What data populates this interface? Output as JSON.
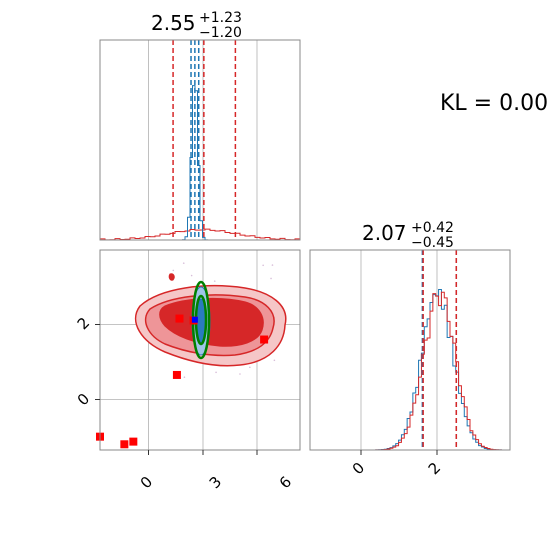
{
  "chart_data": {
    "type": "corner",
    "panels": [
      {
        "panel": "marginal-param-1",
        "title": {
          "value": "2.55",
          "upper": "+1.23",
          "lower": "−1.20"
        },
        "xlim": [
          -1.5,
          6.3
        ],
        "grid": true,
        "series": [
          {
            "color": "#1f77b4",
            "style": "step-histogram",
            "peak_x": 2.2,
            "quantile_lines_x": [
              2.05,
              2.2,
              2.35
            ],
            "quantile_style": "dashed"
          },
          {
            "color": "#d62728",
            "style": "step-histogram",
            "peak_x": 2.5,
            "quantile_lines_x": [
              1.35,
              2.55,
              3.78
            ],
            "quantile_style": "dashed"
          }
        ]
      },
      {
        "panel": "joint-param-1-param-2",
        "xlim": [
          -1.5,
          6.3
        ],
        "ylim": [
          -1.35,
          3.9
        ],
        "grid": true,
        "x_ticks": [
          "0",
          "3",
          "6"
        ],
        "y_ticks": [
          "0",
          "2"
        ],
        "red_contour_center": [
          2.5,
          2.15
        ],
        "blue_contour_center": [
          2.2,
          2.05
        ],
        "red_markers": [
          [
            -1.5,
            -1.0
          ],
          [
            -0.55,
            -1.2
          ],
          [
            -0.2,
            -1.13
          ],
          [
            1.5,
            0.62
          ],
          [
            4.9,
            1.55
          ],
          [
            1.6,
            2.1
          ],
          [
            2.15,
            2.05
          ]
        ],
        "blue_marker": [
          2.2,
          2.07
        ],
        "red_marker_color": "#ff0000",
        "blue_marker_color": "#0000ff",
        "green_contour_color": "#008000"
      },
      {
        "panel": "marginal-param-2",
        "title": {
          "value": "2.07",
          "upper": "+0.42",
          "lower": "−0.45"
        },
        "xlim": [
          -1.35,
          3.9
        ],
        "grid": true,
        "x_ticks": [
          "0",
          "2"
        ],
        "series": [
          {
            "color": "#1f77b4",
            "style": "step-histogram",
            "peak_x": 2.0,
            "quantile_lines_x": [
              1.6,
              2.07,
              2.49
            ],
            "quantile_style": "dashed"
          },
          {
            "color": "#d62728",
            "style": "step-histogram",
            "peak_x": 2.05,
            "quantile_lines_x": [
              1.62,
              2.07,
              2.49
            ],
            "quantile_style": "dashed"
          }
        ]
      }
    ],
    "annotation": "KL = 0.00"
  }
}
